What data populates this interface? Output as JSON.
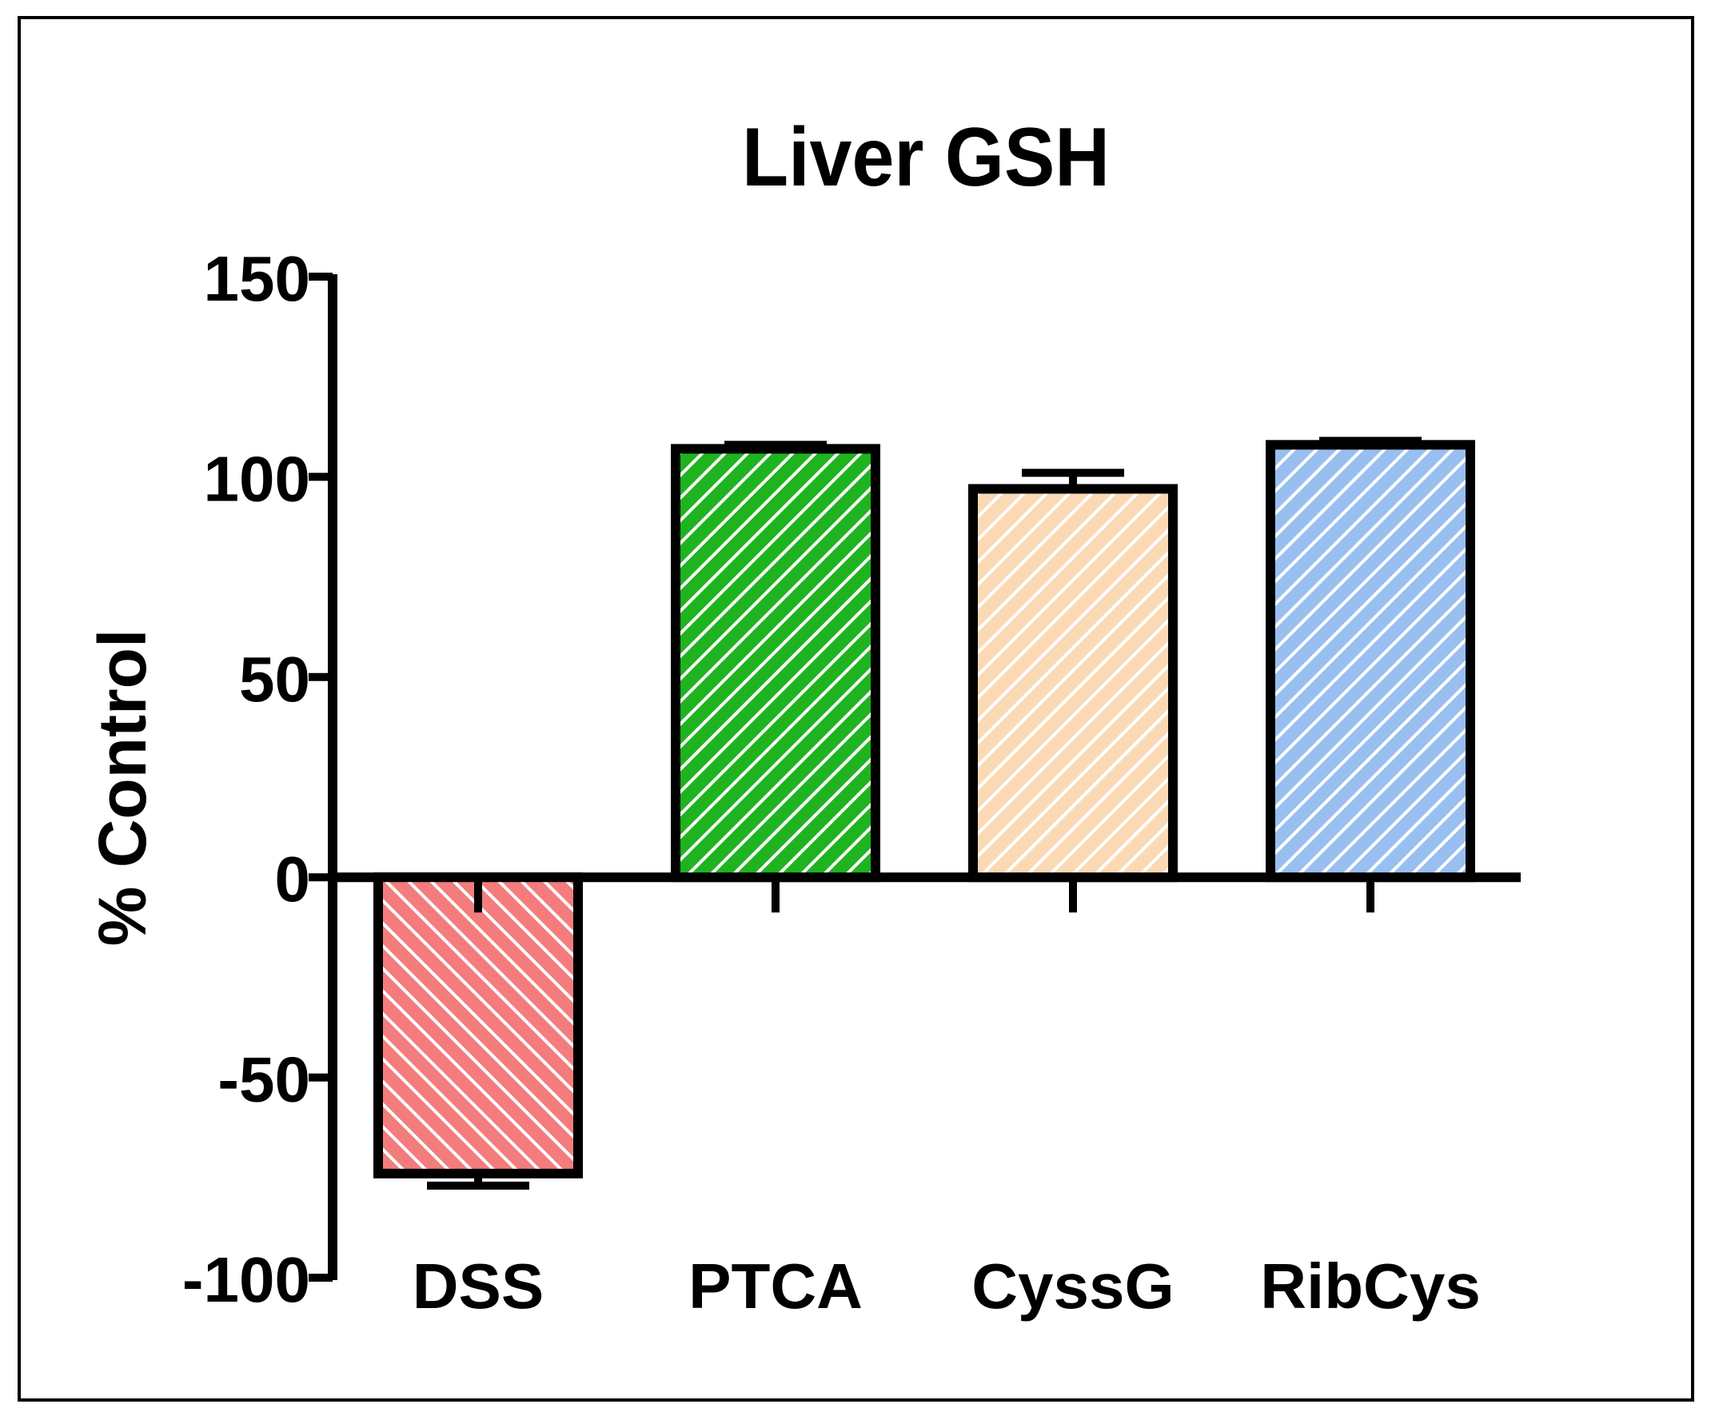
{
  "chart_data": {
    "type": "bar",
    "title": "Liver GSH",
    "xlabel": "",
    "ylabel": "% Control",
    "ylim": [
      -100,
      150
    ],
    "yticks": [
      -100,
      -50,
      0,
      50,
      100,
      150
    ],
    "ytick_labels": [
      "-100",
      "-50",
      "0",
      "50",
      "100",
      "150"
    ],
    "categories": [
      "DSS",
      "PTCA",
      "CyssG",
      "RibCys"
    ],
    "values": [
      -74,
      107,
      97,
      108
    ],
    "errors": [
      3,
      1,
      4,
      1
    ],
    "colors": [
      "#f47c7c",
      "#1fb31f",
      "#fbd9b4",
      "#99bff0"
    ],
    "hatch": "diagonal white stripes",
    "grid": false
  }
}
